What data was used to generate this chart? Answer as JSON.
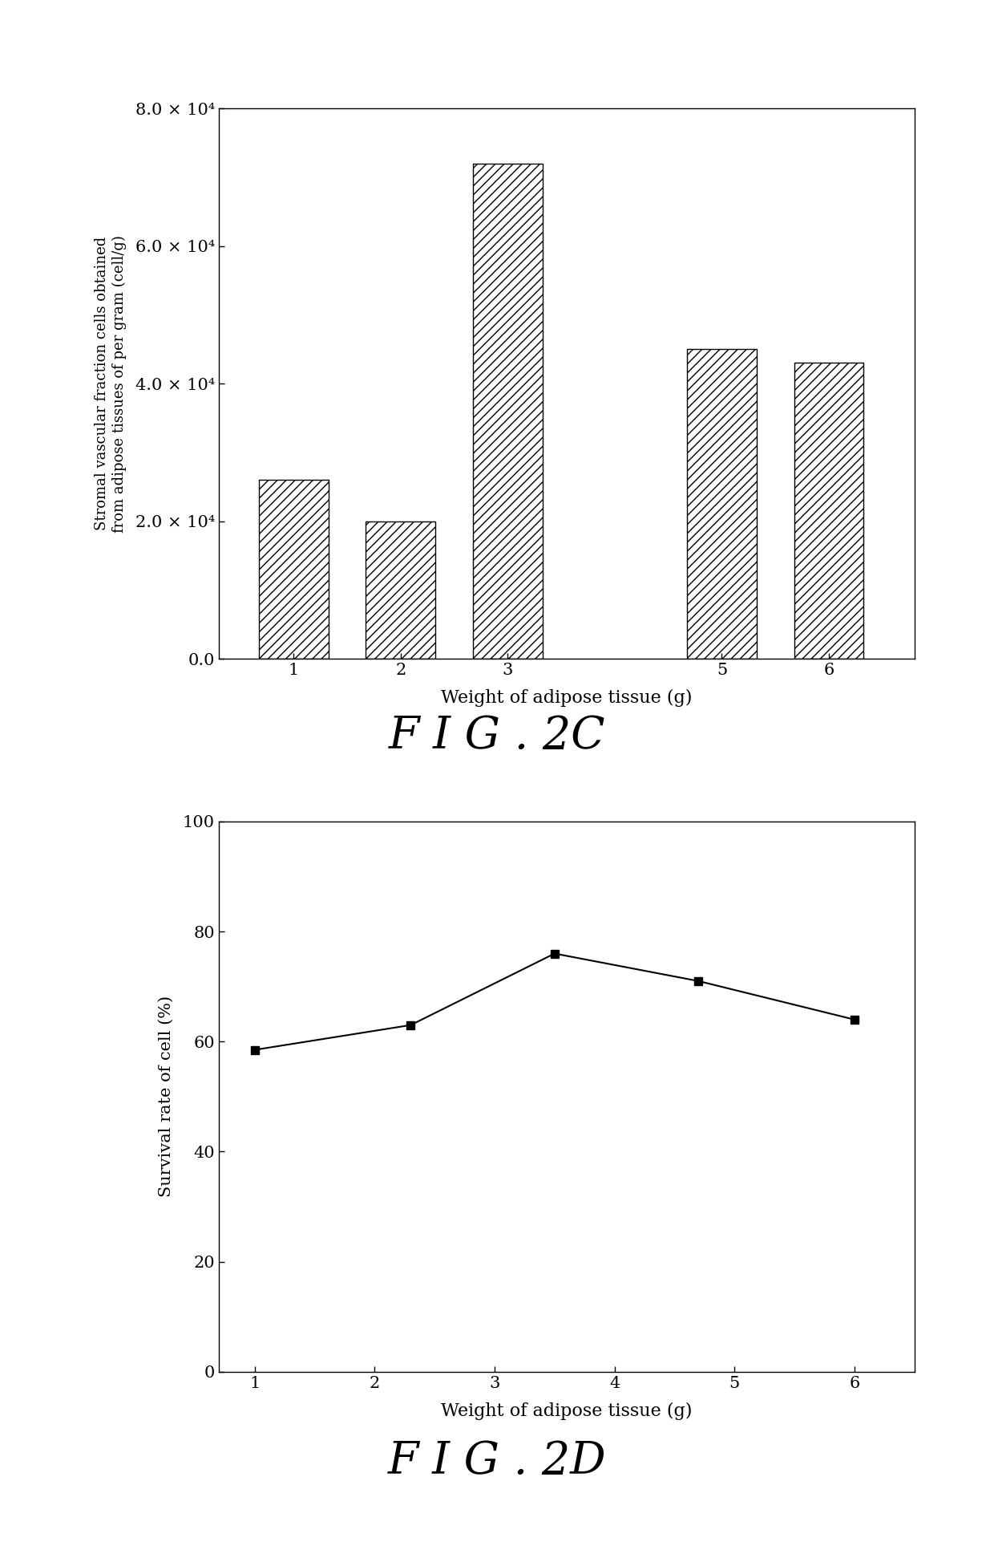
{
  "fig2c": {
    "bar_x": [
      1,
      2,
      3,
      5,
      6
    ],
    "bar_heights": [
      26000,
      20000,
      72000,
      45000,
      43000
    ],
    "bar_width": 0.65,
    "xlabel": "Weight of adipose tissue (g)",
    "ylabel": "Stromal vascular fraction cells obtained\nfrom adipose tissues of per gram (cell/g)",
    "ylim": [
      0,
      80000
    ],
    "yticks": [
      0,
      20000,
      40000,
      60000,
      80000
    ],
    "ytick_labels": [
      "0.0",
      "2.0 × 10⁴",
      "4.0 × 10⁴",
      "6.0 × 10⁴",
      "8.0 × 10⁴"
    ],
    "xticks": [
      1,
      2,
      3,
      5,
      6
    ],
    "xtick_labels": [
      "1",
      "2",
      "3",
      "5",
      "6"
    ],
    "xlim": [
      0.3,
      6.8
    ],
    "caption": "F I G . 2C",
    "hatch_pattern": "///",
    "bar_color": "white",
    "bar_edgecolor": "black"
  },
  "fig2d": {
    "x": [
      1,
      2.3,
      3.5,
      4.7,
      6
    ],
    "y": [
      58.5,
      63,
      76,
      71,
      64
    ],
    "xlabel": "Weight of adipose tissue (g)",
    "ylabel": "Survival rate of cell (%)",
    "ylim": [
      0,
      100
    ],
    "yticks": [
      0,
      20,
      40,
      60,
      80,
      100
    ],
    "ytick_labels": [
      "0",
      "20",
      "40",
      "60",
      "80",
      "100"
    ],
    "xticks": [
      1,
      2,
      3,
      4,
      5,
      6
    ],
    "xtick_labels": [
      "1",
      "2",
      "3",
      "4",
      "5",
      "6"
    ],
    "xlim": [
      0.7,
      6.5
    ],
    "caption": "F I G . 2D",
    "marker": "s",
    "markersize": 7,
    "linecolor": "black",
    "linewidth": 1.5
  },
  "background_color": "#ffffff",
  "font_family": "DejaVu Serif"
}
